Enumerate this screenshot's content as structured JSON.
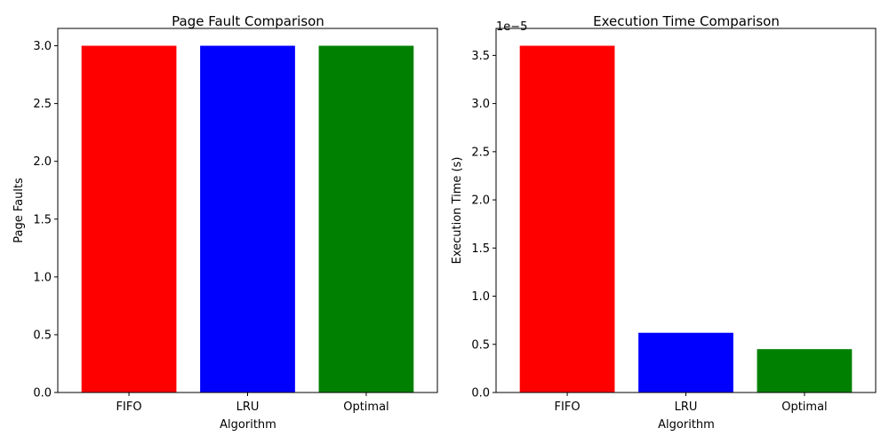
{
  "chart_data": [
    {
      "type": "bar",
      "title": "Page Fault Comparison",
      "xlabel": "Algorithm",
      "ylabel": "Page Faults",
      "categories": [
        "FIFO",
        "LRU",
        "Optimal"
      ],
      "values": [
        3,
        3,
        3
      ],
      "colors": [
        "#ff0000",
        "#0000ff",
        "#008000"
      ],
      "ylim": [
        0,
        3.15
      ],
      "yticks": [
        0,
        0.5,
        1.0,
        1.5,
        2.0,
        2.5,
        3.0
      ],
      "ytick_labels": [
        "0.0",
        "0.5",
        "1.0",
        "1.5",
        "2.0",
        "2.5",
        "3.0"
      ],
      "offset_label": "",
      "grid": false
    },
    {
      "type": "bar",
      "title": "Execution Time Comparison",
      "xlabel": "Algorithm",
      "ylabel": "Execution Time (s)",
      "categories": [
        "FIFO",
        "LRU",
        "Optimal"
      ],
      "values": [
        3.6e-05,
        6.2e-06,
        4.5e-06
      ],
      "colors": [
        "#ff0000",
        "#0000ff",
        "#008000"
      ],
      "ylim": [
        0,
        3.78e-05
      ],
      "yticks": [
        0,
        5e-06,
        1e-05,
        1.5e-05,
        2e-05,
        2.5e-05,
        3e-05,
        3.5e-05
      ],
      "ytick_labels": [
        "0.0",
        "0.5",
        "1.0",
        "1.5",
        "2.0",
        "2.5",
        "3.0",
        "3.5"
      ],
      "offset_label": "1e−5",
      "grid": false
    }
  ]
}
